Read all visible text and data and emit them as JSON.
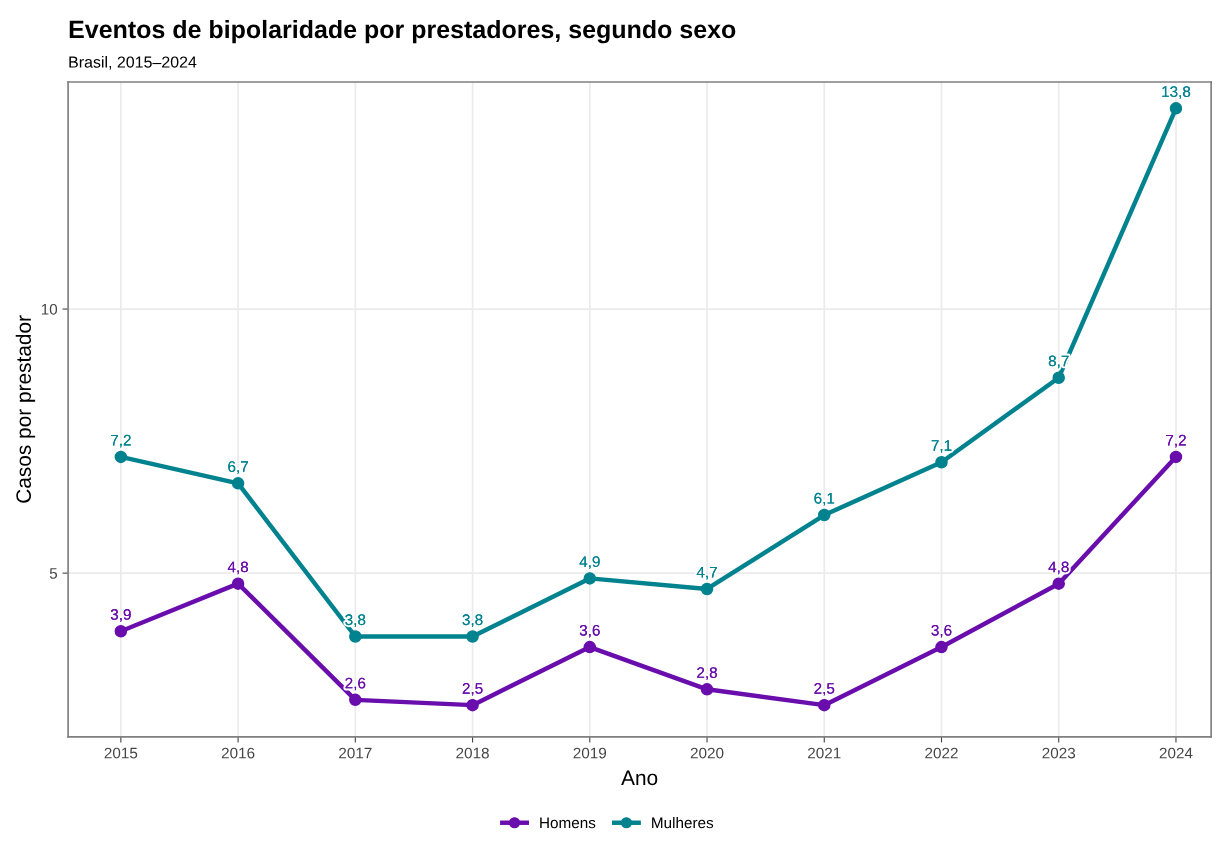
{
  "chart_data": {
    "type": "line",
    "title": "Eventos de bipolaridade por prestadores, segundo sexo",
    "subtitle": "Brasil, 2015–2024",
    "xlabel": "Ano",
    "ylabel": "Casos por prestador",
    "x": [
      2015,
      2016,
      2017,
      2018,
      2019,
      2020,
      2021,
      2022,
      2023,
      2024
    ],
    "series": [
      {
        "name": "Homens",
        "color": "#6a0dad",
        "values": [
          3.9,
          4.8,
          2.6,
          2.5,
          3.6,
          2.8,
          2.5,
          3.6,
          4.8,
          7.2
        ],
        "value_labels": [
          "3,9",
          "4,8",
          "2,6",
          "2,5",
          "3,6",
          "2,8",
          "2,5",
          "3,6",
          "4,8",
          "7,2"
        ]
      },
      {
        "name": "Mulheres",
        "color": "#00838f",
        "values": [
          7.2,
          6.7,
          3.8,
          3.8,
          4.9,
          4.7,
          6.1,
          7.1,
          8.7,
          13.8
        ],
        "value_labels": [
          "7,2",
          "6,7",
          "3,8",
          "3,8",
          "4,9",
          "4,7",
          "6,1",
          "7,1",
          "8,7",
          "13,8"
        ]
      }
    ],
    "xlim": [
      2014.55,
      2024.3
    ],
    "ylim": [
      1.9,
      14.3
    ],
    "xticks": [
      2015,
      2016,
      2017,
      2018,
      2019,
      2020,
      2021,
      2022,
      2023,
      2024
    ],
    "yticks": [
      5,
      10
    ],
    "grid": true,
    "legend": "bottom",
    "marker": "circle",
    "line_style": "solid"
  }
}
